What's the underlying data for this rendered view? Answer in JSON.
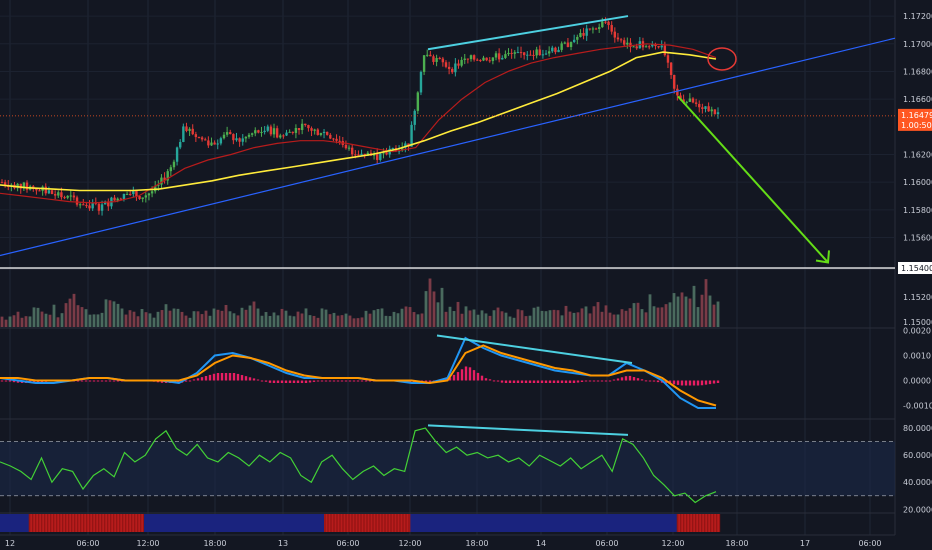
{
  "chart_data": {
    "type": "candlestick",
    "x_ticks": [
      "12",
      "06:00",
      "12:00",
      "18:00",
      "13",
      "06:00",
      "12:00",
      "18:00",
      "14",
      "06:00",
      "12:00",
      "18:00",
      "17",
      "06:00"
    ],
    "price_panel": {
      "y_ticks": [
        "1.17200",
        "1.17000",
        "1.16800",
        "1.16600",
        "1.16200",
        "1.16000",
        "1.15800",
        "1.15600"
      ],
      "ylim": [
        1.1538,
        1.1728
      ],
      "last_price_label": "1.16479",
      "countdown_label": "1.00:50",
      "target_label": "1.15400",
      "close_path": [
        1.16,
        1.1598,
        1.1596,
        1.1594,
        1.159,
        1.1588,
        1.1584,
        1.1582,
        1.1588,
        1.1592,
        1.159,
        1.1595,
        1.161,
        1.164,
        1.1632,
        1.1628,
        1.1634,
        1.163,
        1.1636,
        1.1638,
        1.1633,
        1.164,
        1.1638,
        1.1636,
        1.163,
        1.1622,
        1.162,
        1.1618,
        1.1625,
        1.1628,
        1.1692,
        1.1688,
        1.1682,
        1.1688,
        1.169,
        1.169,
        1.1692,
        1.1693,
        1.1694,
        1.1695,
        1.1698,
        1.1705,
        1.171,
        1.1716,
        1.1702,
        1.17,
        1.1698,
        1.17,
        1.1662,
        1.1658,
        1.1655,
        1.1648
      ],
      "ma_fast_path": [
        1.1592,
        1.159,
        1.1588,
        1.1586,
        1.1585,
        1.1586,
        1.159,
        1.16,
        1.161,
        1.1616,
        1.162,
        1.1625,
        1.1628,
        1.163,
        1.163,
        1.1628,
        1.1625,
        1.1622,
        1.1625,
        1.1645,
        1.166,
        1.1672,
        1.168,
        1.1686,
        1.169,
        1.1693,
        1.1696,
        1.1698,
        1.17,
        1.1699,
        1.1696,
        1.169
      ],
      "ma_slow_path": [
        1.1598,
        1.1596,
        1.1595,
        1.1594,
        1.1594,
        1.1594,
        1.1595,
        1.1598,
        1.1601,
        1.1605,
        1.1608,
        1.1611,
        1.1614,
        1.1617,
        1.162,
        1.1624,
        1.163,
        1.1637,
        1.1643,
        1.165,
        1.1657,
        1.1664,
        1.1672,
        1.168,
        1.169,
        1.1694,
        1.1692,
        1.1689
      ],
      "trendline": [
        1.1547,
        1.1704
      ],
      "divergence_price": [
        1.1696,
        1.172
      ],
      "target_arrow": [
        1.1662,
        1.1542
      ]
    },
    "volume_panel": {
      "y_ticks": [
        "1.15200",
        "1.15000"
      ],
      "levels": [
        0.2,
        0.25,
        0.3,
        0.2,
        0.35,
        0.3,
        0.4,
        0.3,
        0.5,
        0.6,
        0.45,
        0.4,
        0.35,
        0.5,
        0.55,
        0.4,
        0.3,
        0.35,
        0.3,
        0.25,
        0.3,
        0.45,
        0.4,
        0.35,
        0.3,
        0.3,
        0.35,
        0.5,
        0.45,
        0.3,
        0.35,
        0.4,
        0.5,
        0.3,
        0.3,
        0.35,
        0.4,
        0.3,
        0.3,
        0.35,
        0.3,
        0.35,
        0.4,
        0.3,
        0.3,
        0.25,
        0.3,
        0.3,
        0.35,
        0.3,
        0.35,
        0.4,
        0.45,
        0.4,
        1.0,
        0.8,
        0.7,
        0.5,
        0.45,
        0.4,
        0.35,
        0.4,
        0.3,
        0.35,
        0.3,
        0.3,
        0.35,
        0.3,
        0.4,
        0.35,
        0.3,
        0.35,
        0.4,
        0.3,
        0.35,
        0.4,
        0.45,
        0.4,
        0.35,
        0.4,
        0.45,
        0.5,
        0.45,
        0.6,
        0.55,
        0.65,
        0.6,
        0.7,
        0.8,
        0.6,
        0.9,
        0.7
      ]
    },
    "macd_panel": {
      "y_ticks": [
        "0.0020",
        "0.0010",
        "0.0000",
        "-0.0010"
      ],
      "ylim": [
        -0.0015,
        0.0021
      ],
      "macd_path": [
        0.0001,
        0.0,
        -0.0001,
        -0.0001,
        0.0,
        0.0001,
        0.0001,
        0.0,
        0.0,
        0.0,
        -0.0001,
        0.0003,
        0.001,
        0.0011,
        0.0009,
        0.0006,
        0.0003,
        0.0001,
        0.0001,
        0.0001,
        0.0001,
        0.0,
        0.0,
        -0.0001,
        -0.0001,
        0.0001,
        0.0017,
        0.0013,
        0.001,
        0.0008,
        0.0006,
        0.0004,
        0.0003,
        0.0002,
        0.0002,
        0.0007,
        0.0004,
        0.0,
        -0.0007,
        -0.0011,
        -0.0011
      ],
      "signal_path": [
        0.0001,
        0.0001,
        0.0,
        0.0,
        0.0,
        0.0001,
        0.0001,
        0.0,
        0.0,
        0.0,
        0.0,
        0.0002,
        0.0007,
        0.001,
        0.0009,
        0.0007,
        0.0004,
        0.0002,
        0.0001,
        0.0001,
        0.0001,
        0.0,
        0.0,
        0.0,
        -0.0001,
        0.0,
        0.0011,
        0.0014,
        0.0011,
        0.0009,
        0.0007,
        0.0005,
        0.0004,
        0.0002,
        0.0002,
        0.0004,
        0.0004,
        0.0001,
        -0.0004,
        -0.0008,
        -0.001
      ],
      "histogram": [
        0.0,
        -0.0001,
        -0.0001,
        0.0,
        0.0,
        0.0,
        0.0,
        0.0,
        0.0,
        -0.0001,
        -0.0001,
        0.0001,
        0.0003,
        0.0003,
        0.0001,
        -0.0001,
        -0.0001,
        -0.0001,
        0.0,
        0.0,
        0.0,
        0.0,
        0.0,
        -0.0001,
        -0.0001,
        0.0001,
        0.0006,
        0.0001,
        -0.0001,
        -0.0001,
        -0.0001,
        -0.0001,
        -0.0001,
        0.0,
        0.0,
        0.0002,
        0.0,
        -0.0001,
        -0.0002,
        -0.0002,
        -0.0001
      ],
      "divergence": [
        0.0018,
        0.0007
      ]
    },
    "rsi_panel": {
      "y_ticks": [
        "80.0000",
        "60.0000",
        "40.0000",
        "20.0000"
      ],
      "ylim": [
        18,
        86
      ],
      "levels": [
        70,
        30
      ],
      "rsi_path": [
        55,
        52,
        48,
        42,
        58,
        40,
        50,
        48,
        35,
        45,
        50,
        44,
        62,
        55,
        60,
        72,
        78,
        65,
        60,
        68,
        58,
        55,
        62,
        58,
        52,
        60,
        55,
        62,
        58,
        45,
        40,
        55,
        60,
        50,
        42,
        48,
        52,
        45,
        50,
        48,
        78,
        80,
        70,
        62,
        66,
        60,
        62,
        58,
        60,
        55,
        58,
        52,
        60,
        56,
        52,
        58,
        50,
        55,
        60,
        48,
        72,
        68,
        58,
        45,
        38,
        30,
        32,
        25,
        30,
        33
      ],
      "divergence": [
        82,
        75
      ]
    },
    "trend_strip": {
      "colors": [
        "#1a237e",
        "#b71c1c"
      ],
      "segments": [
        [
          "blue",
          0.0,
          0.04
        ],
        [
          "red",
          0.04,
          0.2
        ],
        [
          "blue",
          0.2,
          0.45
        ],
        [
          "red",
          0.45,
          0.57
        ],
        [
          "blue",
          0.57,
          0.94
        ],
        [
          "red",
          0.94,
          1.0
        ]
      ]
    },
    "colors": {
      "up": "#26a69a",
      "up_bright": "#4caf50",
      "down": "#e53935",
      "ma_fast": "#b71c1c",
      "ma_slow": "#ffeb3b",
      "trendline": "#2962ff",
      "divergence": "#4dd0e1",
      "target_arrow": "#64dd17",
      "rsi": "#43d136",
      "macd": "#2196f3",
      "signal": "#ff9800",
      "histogram": "#e91e63",
      "last_price_tag": "#ff5722",
      "ellipse": "#e53935"
    },
    "grid": true
  }
}
